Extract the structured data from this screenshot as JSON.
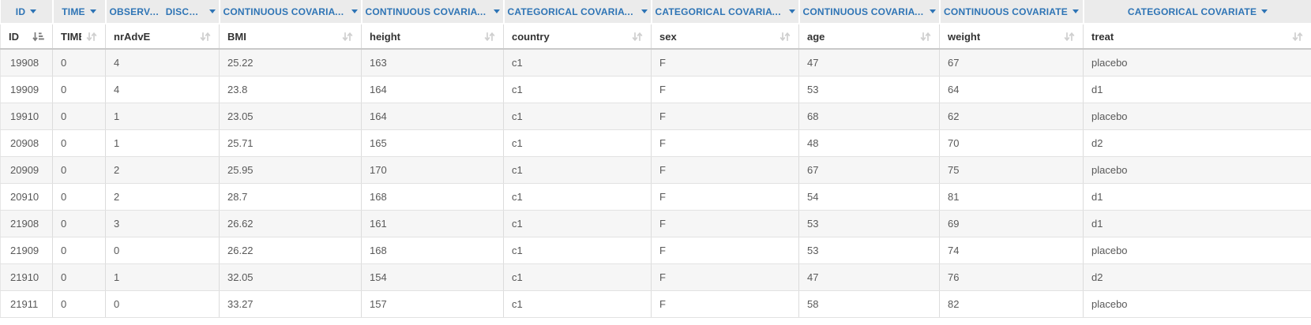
{
  "colors": {
    "accent_blue": "#2e74b5",
    "type_row_bg": "#ebebeb",
    "stripe_bg": "#f6f6f6",
    "border": "#dcdcdc",
    "header_text": "#333333",
    "cell_text": "#595959",
    "sort_icon_inactive": "#cfcfcf",
    "sort_icon_active": "#7a7a7a"
  },
  "table": {
    "columns": [
      {
        "name": "ID",
        "type_label": "ID",
        "sorted": true
      },
      {
        "name": "TIME",
        "type_label": "TIME",
        "sorted": false
      },
      {
        "name": "nrAdvE",
        "type_label": "OBSERVATI…",
        "subtype_label": "DISCRETE",
        "sorted": false
      },
      {
        "name": "BMI",
        "type_label": "CONTINUOUS COVARIATE",
        "sorted": false
      },
      {
        "name": "height",
        "type_label": "CONTINUOUS COVARIATE",
        "sorted": false
      },
      {
        "name": "country",
        "type_label": "CATEGORICAL COVARIATE",
        "sorted": false
      },
      {
        "name": "sex",
        "type_label": "CATEGORICAL COVARIATE",
        "sorted": false
      },
      {
        "name": "age",
        "type_label": "CONTINUOUS COVARIATE",
        "sorted": false
      },
      {
        "name": "weight",
        "type_label": "CONTINUOUS COVARIATE",
        "sorted": false
      },
      {
        "name": "treat",
        "type_label": "CATEGORICAL COVARIATE",
        "sorted": false
      }
    ],
    "rows": [
      [
        "19908",
        "0",
        "4",
        "25.22",
        "163",
        "c1",
        "F",
        "47",
        "67",
        "placebo"
      ],
      [
        "19909",
        "0",
        "4",
        "23.8",
        "164",
        "c1",
        "F",
        "53",
        "64",
        "d1"
      ],
      [
        "19910",
        "0",
        "1",
        "23.05",
        "164",
        "c1",
        "F",
        "68",
        "62",
        "placebo"
      ],
      [
        "20908",
        "0",
        "1",
        "25.71",
        "165",
        "c1",
        "F",
        "48",
        "70",
        "d2"
      ],
      [
        "20909",
        "0",
        "2",
        "25.95",
        "170",
        "c1",
        "F",
        "67",
        "75",
        "placebo"
      ],
      [
        "20910",
        "0",
        "2",
        "28.7",
        "168",
        "c1",
        "F",
        "54",
        "81",
        "d1"
      ],
      [
        "21908",
        "0",
        "3",
        "26.62",
        "161",
        "c1",
        "F",
        "53",
        "69",
        "d1"
      ],
      [
        "21909",
        "0",
        "0",
        "26.22",
        "168",
        "c1",
        "F",
        "53",
        "74",
        "placebo"
      ],
      [
        "21910",
        "0",
        "1",
        "32.05",
        "154",
        "c1",
        "F",
        "47",
        "76",
        "d2"
      ],
      [
        "21911",
        "0",
        "0",
        "33.27",
        "157",
        "c1",
        "F",
        "58",
        "82",
        "placebo"
      ]
    ]
  }
}
